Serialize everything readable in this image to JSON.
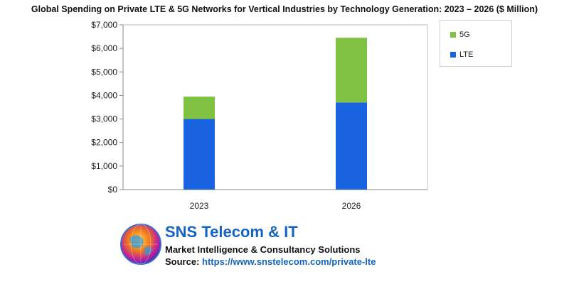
{
  "chart_data": {
    "type": "bar",
    "stacked": true,
    "title": "Global Spending on Private LTE & 5G Networks for Vertical Industries by Technology Generation: 2023 – 2026 ($ Million)",
    "xlabel": "",
    "ylabel": "",
    "categories": [
      "2023",
      "2026"
    ],
    "series": [
      {
        "name": "LTE",
        "values": [
          3000,
          3700
        ],
        "color": "#1a63e0"
      },
      {
        "name": "5G",
        "values": [
          950,
          2750
        ],
        "color": "#7fc241"
      }
    ],
    "ylim": [
      0,
      7000
    ],
    "yticks": [
      0,
      1000,
      2000,
      3000,
      4000,
      5000,
      6000,
      7000
    ],
    "ytick_labels": [
      "$0",
      "$1,000",
      "$2,000",
      "$3,000",
      "$4,000",
      "$5,000",
      "$6,000",
      "$7,000"
    ],
    "grid": false,
    "legend_position": "right"
  },
  "legend": [
    {
      "label": "5G",
      "color": "#7fc241"
    },
    {
      "label": "LTE",
      "color": "#1a63e0"
    }
  ],
  "branding": {
    "company": "SNS Telecom & IT",
    "tagline": "Market Intelligence & Consultancy Solutions",
    "source_label": "Source:",
    "source_url": "https://www.snstelecom.com/private-lte"
  }
}
